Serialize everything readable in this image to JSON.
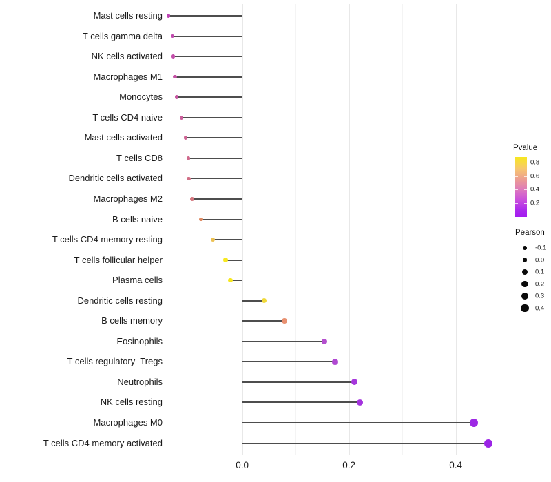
{
  "chart_data": {
    "type": "scatter",
    "subtype": "lollipop",
    "title": "",
    "xlabel": "",
    "ylabel": "",
    "xlim": [
      -0.168,
      0.49
    ],
    "grid": "vertical-only",
    "x_major_ticks": [
      {
        "value": 0.0,
        "label": "0.0"
      },
      {
        "value": 0.2,
        "label": "0.2"
      },
      {
        "value": 0.4,
        "label": "0.4"
      }
    ],
    "x_minor_gridlines": [
      -0.1,
      0.1,
      0.3
    ],
    "stem_color": "#4d4d4d",
    "axis_text_color": "#1a1a1a",
    "points": [
      {
        "category": "Mast cells resting",
        "pearson": -0.138,
        "color": "#BE44B4"
      },
      {
        "category": "T cells gamma delta",
        "pearson": -0.131,
        "color": "#C149AE"
      },
      {
        "category": "NK cells activated",
        "pearson": -0.129,
        "color": "#C34EAA"
      },
      {
        "category": "Macrophages M1",
        "pearson": -0.126,
        "color": "#C553A6"
      },
      {
        "category": "Monocytes",
        "pearson": -0.123,
        "color": "#C757A2"
      },
      {
        "category": "T cells CD4 naive",
        "pearson": -0.114,
        "color": "#CB5E9B"
      },
      {
        "category": "Mast cells activated",
        "pearson": -0.106,
        "color": "#CE6494"
      },
      {
        "category": "T cells CD8",
        "pearson": -0.101,
        "color": "#CF6A8D"
      },
      {
        "category": "Dendritic cells activated",
        "pearson": -0.1,
        "color": "#D16F86"
      },
      {
        "category": "Macrophages M2",
        "pearson": -0.094,
        "color": "#D4767E"
      },
      {
        "category": "B cells naive",
        "pearson": -0.077,
        "color": "#DE8A62"
      },
      {
        "category": "T cells CD4 memory resting",
        "pearson": -0.055,
        "color": "#ECC154"
      },
      {
        "category": "T cells follicular helper",
        "pearson": -0.031,
        "color": "#F7E821"
      },
      {
        "category": "Plasma cells",
        "pearson": -0.022,
        "color": "#F6E71E"
      },
      {
        "category": "Dendritic cells resting",
        "pearson": 0.041,
        "color": "#F0D93A"
      },
      {
        "category": "B cells memory",
        "pearson": 0.079,
        "color": "#E89070"
      },
      {
        "category": "Eosinophils",
        "pearson": 0.154,
        "color": "#B44FCE"
      },
      {
        "category": "T cells regulatory  Tregs",
        "pearson": 0.174,
        "color": "#B048D2"
      },
      {
        "category": "Neutrophils",
        "pearson": 0.21,
        "color": "#A637DC"
      },
      {
        "category": "NK cells resting",
        "pearson": 0.22,
        "color": "#A433DE"
      },
      {
        "category": "Macrophages M0",
        "pearson": 0.434,
        "color": "#9D28E4"
      },
      {
        "category": "T cells CD4 memory activated",
        "pearson": 0.461,
        "color": "#9B24E6"
      }
    ],
    "legend_color": {
      "title": "Pvalue",
      "range": [
        0.0,
        0.88
      ],
      "ticks": [
        {
          "value": 0.8,
          "label": "0.8"
        },
        {
          "value": 0.6,
          "label": "0.6"
        },
        {
          "value": 0.4,
          "label": "0.4"
        },
        {
          "value": 0.2,
          "label": "0.2"
        }
      ],
      "gradient_top_to_bottom": [
        {
          "at": 0.0,
          "color": "#F7E81F"
        },
        {
          "at": 0.2,
          "color": "#F7C66F"
        },
        {
          "at": 0.38,
          "color": "#EC9B93"
        },
        {
          "at": 0.55,
          "color": "#DD78BE"
        },
        {
          "at": 0.72,
          "color": "#C94FDC"
        },
        {
          "at": 0.88,
          "color": "#AC2AEC"
        },
        {
          "at": 1.0,
          "color": "#A31CF0"
        }
      ]
    },
    "legend_size": {
      "title": "Pearson",
      "dot_color": "#0a0a0a",
      "entries": [
        {
          "value": -0.1,
          "label": "-0.1"
        },
        {
          "value": 0.0,
          "label": "0.0"
        },
        {
          "value": 0.1,
          "label": "0.1"
        },
        {
          "value": 0.2,
          "label": "0.2"
        },
        {
          "value": 0.3,
          "label": "0.3"
        },
        {
          "value": 0.4,
          "label": "0.4"
        }
      ]
    }
  }
}
